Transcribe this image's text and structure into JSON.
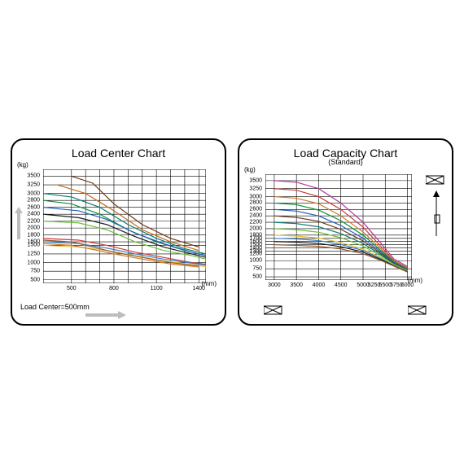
{
  "left": {
    "title": "Load Center Chart",
    "y_unit": "(kg)",
    "x_unit": "(mm)",
    "footnote": "Load Center=500mm",
    "y_ticks": [
      3500,
      3250,
      3000,
      2800,
      2600,
      2400,
      2200,
      2000,
      1800,
      1600,
      1500,
      1250,
      1000,
      750,
      500
    ],
    "x_ticks": [
      500,
      800,
      1100,
      1400
    ],
    "x_range": [
      300,
      1450
    ],
    "y_range": [
      400,
      3700
    ],
    "grid_color": "#000000",
    "grid_width": 0.6,
    "series": [
      {
        "color": "#6b3a1a",
        "pts": [
          [
            500,
            3500
          ],
          [
            650,
            3300
          ],
          [
            800,
            2700
          ],
          [
            1000,
            2100
          ],
          [
            1200,
            1700
          ],
          [
            1400,
            1450
          ]
        ]
      },
      {
        "color": "#c46a1a",
        "pts": [
          [
            400,
            3250
          ],
          [
            600,
            3000
          ],
          [
            800,
            2500
          ],
          [
            1000,
            1950
          ],
          [
            1200,
            1600
          ],
          [
            1400,
            1350
          ]
        ]
      },
      {
        "color": "#0b7a6e",
        "pts": [
          [
            300,
            3000
          ],
          [
            500,
            2900
          ],
          [
            700,
            2600
          ],
          [
            900,
            2100
          ],
          [
            1100,
            1700
          ],
          [
            1300,
            1400
          ],
          [
            1450,
            1250
          ]
        ]
      },
      {
        "color": "#0a8f3a",
        "pts": [
          [
            300,
            2800
          ],
          [
            500,
            2700
          ],
          [
            700,
            2400
          ],
          [
            900,
            1950
          ],
          [
            1100,
            1600
          ],
          [
            1300,
            1350
          ],
          [
            1450,
            1200
          ]
        ]
      },
      {
        "color": "#1f5fbf",
        "pts": [
          [
            300,
            2600
          ],
          [
            550,
            2500
          ],
          [
            750,
            2250
          ],
          [
            950,
            1850
          ],
          [
            1150,
            1550
          ],
          [
            1350,
            1300
          ],
          [
            1450,
            1200
          ]
        ]
      },
      {
        "color": "#1a1a1a",
        "pts": [
          [
            300,
            2400
          ],
          [
            550,
            2300
          ],
          [
            750,
            2100
          ],
          [
            950,
            1750
          ],
          [
            1150,
            1450
          ],
          [
            1350,
            1250
          ],
          [
            1450,
            1150
          ]
        ]
      },
      {
        "color": "#6bbf3a",
        "pts": [
          [
            300,
            2200
          ],
          [
            550,
            2150
          ],
          [
            750,
            1950
          ],
          [
            950,
            1600
          ],
          [
            1150,
            1350
          ],
          [
            1350,
            1200
          ],
          [
            1450,
            1100
          ]
        ]
      },
      {
        "color": "#c93a3a",
        "pts": [
          [
            300,
            1700
          ],
          [
            550,
            1650
          ],
          [
            750,
            1500
          ],
          [
            950,
            1300
          ],
          [
            1150,
            1150
          ],
          [
            1350,
            1000
          ],
          [
            1450,
            950
          ]
        ]
      },
      {
        "color": "#3a7fc9",
        "pts": [
          [
            300,
            1600
          ],
          [
            550,
            1550
          ],
          [
            750,
            1420
          ],
          [
            950,
            1250
          ],
          [
            1150,
            1100
          ],
          [
            1350,
            980
          ],
          [
            1450,
            920
          ]
        ]
      },
      {
        "color": "#e6c23a",
        "pts": [
          [
            300,
            1500
          ],
          [
            550,
            1450
          ],
          [
            750,
            1350
          ],
          [
            950,
            1200
          ],
          [
            1150,
            1050
          ],
          [
            1350,
            940
          ],
          [
            1450,
            880
          ]
        ]
      },
      {
        "color": "#8f5a2a",
        "pts": [
          [
            300,
            1650
          ],
          [
            500,
            1600
          ],
          [
            650,
            1450
          ],
          [
            800,
            1300
          ],
          [
            1000,
            1150
          ],
          [
            1200,
            1000
          ],
          [
            1400,
            900
          ]
        ]
      },
      {
        "color": "#d07a2a",
        "pts": [
          [
            300,
            1550
          ],
          [
            500,
            1500
          ],
          [
            650,
            1380
          ],
          [
            800,
            1250
          ],
          [
            1000,
            1100
          ],
          [
            1200,
            960
          ],
          [
            1400,
            870
          ]
        ]
      }
    ]
  },
  "right": {
    "title": "Load Capacity Chart",
    "subtitle": "(Standard)",
    "y_unit": "(kg)",
    "x_unit": "(mm)",
    "y_ticks": [
      3500,
      3250,
      3000,
      2800,
      2600,
      2400,
      2200,
      2000,
      1800,
      1700,
      1600,
      1500,
      1400,
      1300,
      1200,
      1000,
      750,
      500
    ],
    "x_ticks": [
      3000,
      3500,
      4000,
      4500,
      5000,
      5250,
      5500,
      5750,
      6000
    ],
    "x_range": [
      2800,
      6100
    ],
    "y_range": [
      400,
      3700
    ],
    "grid_color": "#000000",
    "grid_width": 0.6,
    "series": [
      {
        "color": "#b03a9a",
        "pts": [
          [
            3000,
            3500
          ],
          [
            3500,
            3450
          ],
          [
            4000,
            3250
          ],
          [
            4500,
            2800
          ],
          [
            5000,
            2200
          ],
          [
            5400,
            1550
          ],
          [
            5700,
            1050
          ],
          [
            6000,
            820
          ]
        ]
      },
      {
        "color": "#c93a3a",
        "pts": [
          [
            3000,
            3250
          ],
          [
            3500,
            3200
          ],
          [
            4000,
            3000
          ],
          [
            4500,
            2600
          ],
          [
            5000,
            2050
          ],
          [
            5400,
            1450
          ],
          [
            5700,
            1000
          ],
          [
            6000,
            780
          ]
        ]
      },
      {
        "color": "#d07a2a",
        "pts": [
          [
            3000,
            3000
          ],
          [
            3500,
            2950
          ],
          [
            4000,
            2780
          ],
          [
            4500,
            2400
          ],
          [
            5000,
            1900
          ],
          [
            5400,
            1380
          ],
          [
            5700,
            980
          ],
          [
            6000,
            760
          ]
        ]
      },
      {
        "color": "#0a8f3a",
        "pts": [
          [
            3000,
            2800
          ],
          [
            3500,
            2750
          ],
          [
            4000,
            2580
          ],
          [
            4500,
            2250
          ],
          [
            5000,
            1800
          ],
          [
            5400,
            1320
          ],
          [
            5700,
            960
          ],
          [
            6000,
            740
          ]
        ]
      },
      {
        "color": "#1f5fbf",
        "pts": [
          [
            3000,
            2600
          ],
          [
            3500,
            2550
          ],
          [
            4000,
            2400
          ],
          [
            4500,
            2100
          ],
          [
            5000,
            1700
          ],
          [
            5400,
            1270
          ],
          [
            5700,
            940
          ],
          [
            6000,
            720
          ]
        ]
      },
      {
        "color": "#6b3a1a",
        "pts": [
          [
            3000,
            2400
          ],
          [
            3500,
            2350
          ],
          [
            4000,
            2230
          ],
          [
            4500,
            1980
          ],
          [
            5000,
            1620
          ],
          [
            5400,
            1230
          ],
          [
            5700,
            920
          ],
          [
            6000,
            710
          ]
        ]
      },
      {
        "color": "#0b7a6e",
        "pts": [
          [
            3000,
            2200
          ],
          [
            3500,
            2160
          ],
          [
            4000,
            2060
          ],
          [
            4500,
            1850
          ],
          [
            5000,
            1540
          ],
          [
            5400,
            1190
          ],
          [
            5700,
            900
          ],
          [
            6000,
            700
          ]
        ]
      },
      {
        "color": "#6bbf3a",
        "pts": [
          [
            3000,
            2000
          ],
          [
            3500,
            1970
          ],
          [
            4000,
            1890
          ],
          [
            4500,
            1720
          ],
          [
            5000,
            1460
          ],
          [
            5400,
            1150
          ],
          [
            5700,
            880
          ],
          [
            6000,
            690
          ]
        ]
      },
      {
        "color": "#e6c23a",
        "pts": [
          [
            3000,
            1800
          ],
          [
            3500,
            1770
          ],
          [
            4000,
            1710
          ],
          [
            4500,
            1570
          ],
          [
            5000,
            1360
          ],
          [
            5400,
            1100
          ],
          [
            5700,
            860
          ],
          [
            6000,
            680
          ]
        ]
      },
      {
        "color": "#3a7fc9",
        "pts": [
          [
            3000,
            1700
          ],
          [
            3500,
            1680
          ],
          [
            4000,
            1630
          ],
          [
            4500,
            1510
          ],
          [
            5000,
            1320
          ],
          [
            5400,
            1070
          ],
          [
            5700,
            850
          ],
          [
            6000,
            670
          ]
        ]
      },
      {
        "color": "#1a1a1a",
        "pts": [
          [
            3000,
            1600
          ],
          [
            3500,
            1580
          ],
          [
            4000,
            1540
          ],
          [
            4500,
            1440
          ],
          [
            5000,
            1270
          ],
          [
            5400,
            1040
          ],
          [
            5700,
            840
          ],
          [
            6000,
            660
          ]
        ]
      },
      {
        "color": "#8f5a2a",
        "pts": [
          [
            3000,
            1500
          ],
          [
            3500,
            1480
          ],
          [
            4000,
            1450
          ],
          [
            4500,
            1370
          ],
          [
            5000,
            1220
          ],
          [
            5400,
            1010
          ],
          [
            5700,
            830
          ],
          [
            6000,
            650
          ]
        ]
      }
    ]
  },
  "colors": {
    "arrow_grey": "#bdbdbd"
  }
}
